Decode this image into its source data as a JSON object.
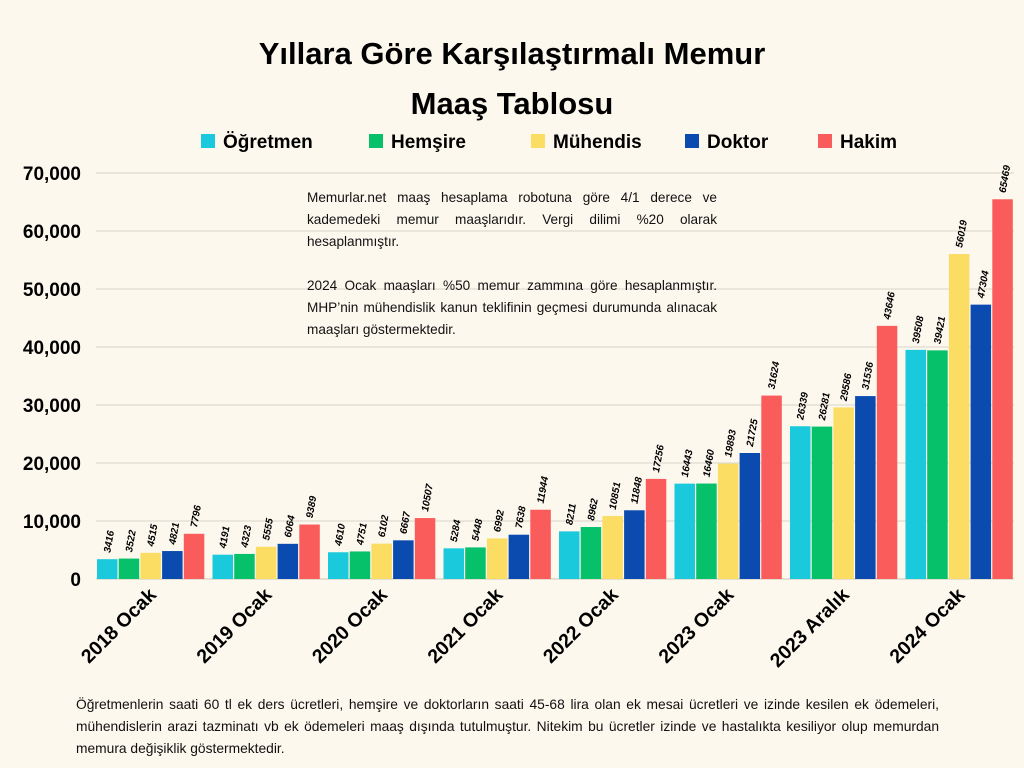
{
  "title_lines": [
    "Yıllara Göre Karşılaştırmalı Memur",
    "Maaş Tablosu"
  ],
  "note_paragraphs": [
    "Memurlar.net maaş hesaplama robotuna göre 4/1 derece ve kademedeki memur maaşlarıdır. Vergi dilimi %20 olarak hesaplanmıştır.",
    "2024 Ocak maaşları %50 memur zammına göre hesaplanmıştır. MHP’nin mühendislik kanun teklifinin geçmesi durumunda alınacak maaşları göstermektedir."
  ],
  "footer_note": "Öğretmenlerin saati 60 tl ek ders ücretleri, hemşire ve doktorların saati 45-68 lira olan ek mesai ücretleri ve izinde kesilen ek ödemeleri, mühendislerin arazi tazminatı vb ek ödemeleri maaş dışında tutulmuştur. Nitekim bu ücretler izinde ve hastalıkta kesiliyor olup memurdan memura değişiklik göstermektedir.",
  "chart_data": {
    "type": "bar",
    "title": "Yıllara Göre Karşılaştırmalı Memur Maaş Tablosu",
    "categories": [
      "2018 Ocak",
      "2019 Ocak",
      "2020 Ocak",
      "2021 Ocak",
      "2022 Ocak",
      "2023 Ocak",
      "2023 Aralık",
      "2024 Ocak"
    ],
    "series": [
      {
        "name": "Öğretmen",
        "color": "#1bc9dc",
        "values": [
          3416,
          4191,
          4610,
          5284,
          8211,
          16443,
          26339,
          39508
        ]
      },
      {
        "name": "Hemşire",
        "color": "#07c06a",
        "values": [
          3522,
          4323,
          4751,
          5448,
          8962,
          16460,
          26281,
          39421
        ]
      },
      {
        "name": "Mühendis",
        "color": "#fbdd63",
        "values": [
          4515,
          5555,
          6102,
          6992,
          10851,
          19893,
          29586,
          56019
        ]
      },
      {
        "name": "Doktor",
        "color": "#0b4bb0",
        "values": [
          4821,
          6064,
          6667,
          7638,
          11848,
          21725,
          31536,
          47304
        ]
      },
      {
        "name": "Hakim",
        "color": "#fa5c5c",
        "values": [
          7796,
          9389,
          10507,
          11944,
          17256,
          31624,
          43646,
          65469
        ]
      }
    ],
    "ylim": [
      0,
      70000
    ],
    "yticks": [
      0,
      10000,
      20000,
      30000,
      40000,
      50000,
      60000,
      70000
    ],
    "ytick_labels": [
      "0",
      "10,000",
      "20,000",
      "30,000",
      "40,000",
      "50,000",
      "60,000",
      "70,000"
    ],
    "grid": true,
    "legend_position": "top"
  }
}
